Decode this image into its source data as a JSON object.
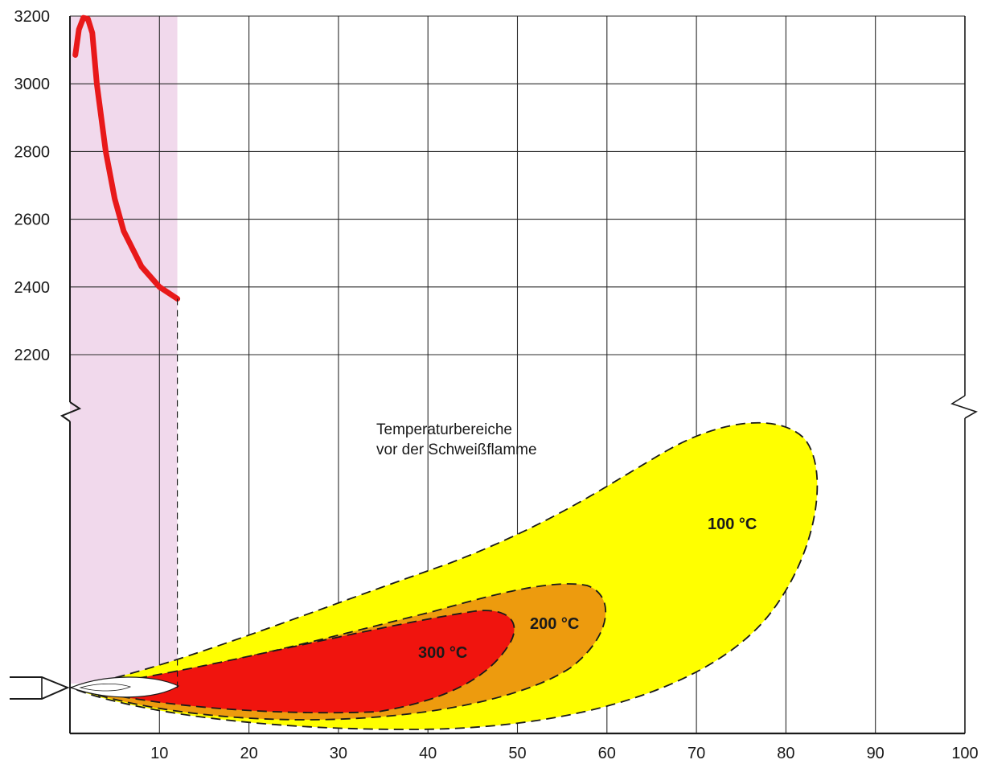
{
  "chart_data": {
    "type": "line",
    "title": "",
    "xlabel": "",
    "ylabel": "",
    "xlim": [
      0,
      100
    ],
    "ylim": [
      2200,
      3200
    ],
    "x_ticks": [
      "10",
      "20",
      "30",
      "40",
      "50",
      "60",
      "70",
      "80",
      "90",
      "100"
    ],
    "y_ticks": [
      "2200",
      "2400",
      "2600",
      "2800",
      "3000",
      "3200"
    ],
    "grid": true,
    "y_axis_break": true,
    "series": [
      {
        "color": "#e8191a",
        "x": [
          0.6,
          1.0,
          1.5,
          2.0,
          2.5,
          3.0,
          4.0,
          5.0,
          6.0,
          8.0,
          10.0,
          12.0
        ],
        "y": [
          3085,
          3160,
          3195,
          3192,
          3150,
          3000,
          2800,
          2660,
          2565,
          2460,
          2400,
          2365
        ]
      }
    ],
    "annotation": {
      "line1": "Temperaturbereiche",
      "line2": "vor der Schweißflamme"
    },
    "zones": [
      {
        "label": "100 °C",
        "color": "#ffff00"
      },
      {
        "label": "200 °C",
        "color": "#ed9b0e"
      },
      {
        "label": "300 °C",
        "color": "#f0140e"
      }
    ],
    "colors": {
      "flame_region": "#f1d9ec",
      "grid": "#2a2a2a"
    }
  }
}
